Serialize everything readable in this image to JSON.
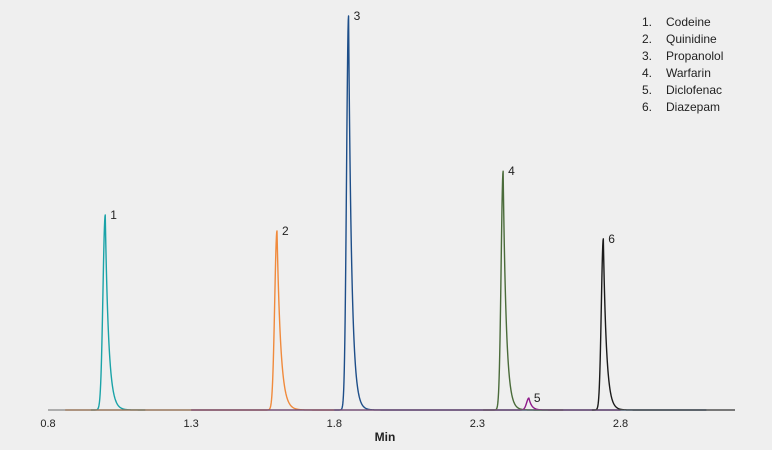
{
  "chart_data": {
    "type": "line",
    "title": "",
    "xlabel": "Min",
    "ylabel": "",
    "xlim": [
      0.8,
      3.2
    ],
    "ylim": [
      0,
      1
    ],
    "xticks": [
      "0.8",
      "1.3",
      "1.8",
      "2.3",
      "2.8"
    ],
    "grid": false,
    "legend_position": "top-right",
    "legend": [
      {
        "number": "1.",
        "name": "Codeine"
      },
      {
        "number": "2.",
        "name": "Quinidine"
      },
      {
        "number": "3.",
        "name": "Propanolol"
      },
      {
        "number": "4.",
        "name": "Warfarin"
      },
      {
        "number": "5.",
        "name": "Diclofenac"
      },
      {
        "number": "6.",
        "name": "Diazepam"
      }
    ],
    "series": [
      {
        "label": "1",
        "color": "#1aa3a8",
        "x_start": 0.95,
        "x_end": 1.14,
        "peak_x": 1.0,
        "peak_y": 0.49,
        "sigma": 0.008,
        "tail": 0.012
      },
      {
        "label": "2",
        "color": "#f08a3c",
        "x_start": 0.86,
        "x_end": 1.8,
        "peak_x": 1.6,
        "peak_y": 0.45,
        "sigma": 0.008,
        "tail": 0.013
      },
      {
        "label": "3",
        "color": "#1d4e89",
        "x_start": 1.8,
        "x_end": 3.1,
        "peak_x": 1.85,
        "peak_y": 0.99,
        "sigma": 0.007,
        "tail": 0.011
      },
      {
        "label": "4",
        "color": "#4a6b3a",
        "x_start": 2.32,
        "x_end": 2.6,
        "peak_x": 2.39,
        "peak_y": 0.6,
        "sigma": 0.007,
        "tail": 0.011
      },
      {
        "label": "5",
        "color": "#8e1a8a",
        "x_start": 1.3,
        "x_end": 2.8,
        "peak_x": 2.48,
        "peak_y": 0.03,
        "sigma": 0.008,
        "tail": 0.01
      },
      {
        "label": "6",
        "color": "#1a1a1a",
        "x_start": 2.7,
        "x_end": 3.2,
        "peak_x": 2.74,
        "peak_y": 0.43,
        "sigma": 0.007,
        "tail": 0.011
      }
    ]
  }
}
